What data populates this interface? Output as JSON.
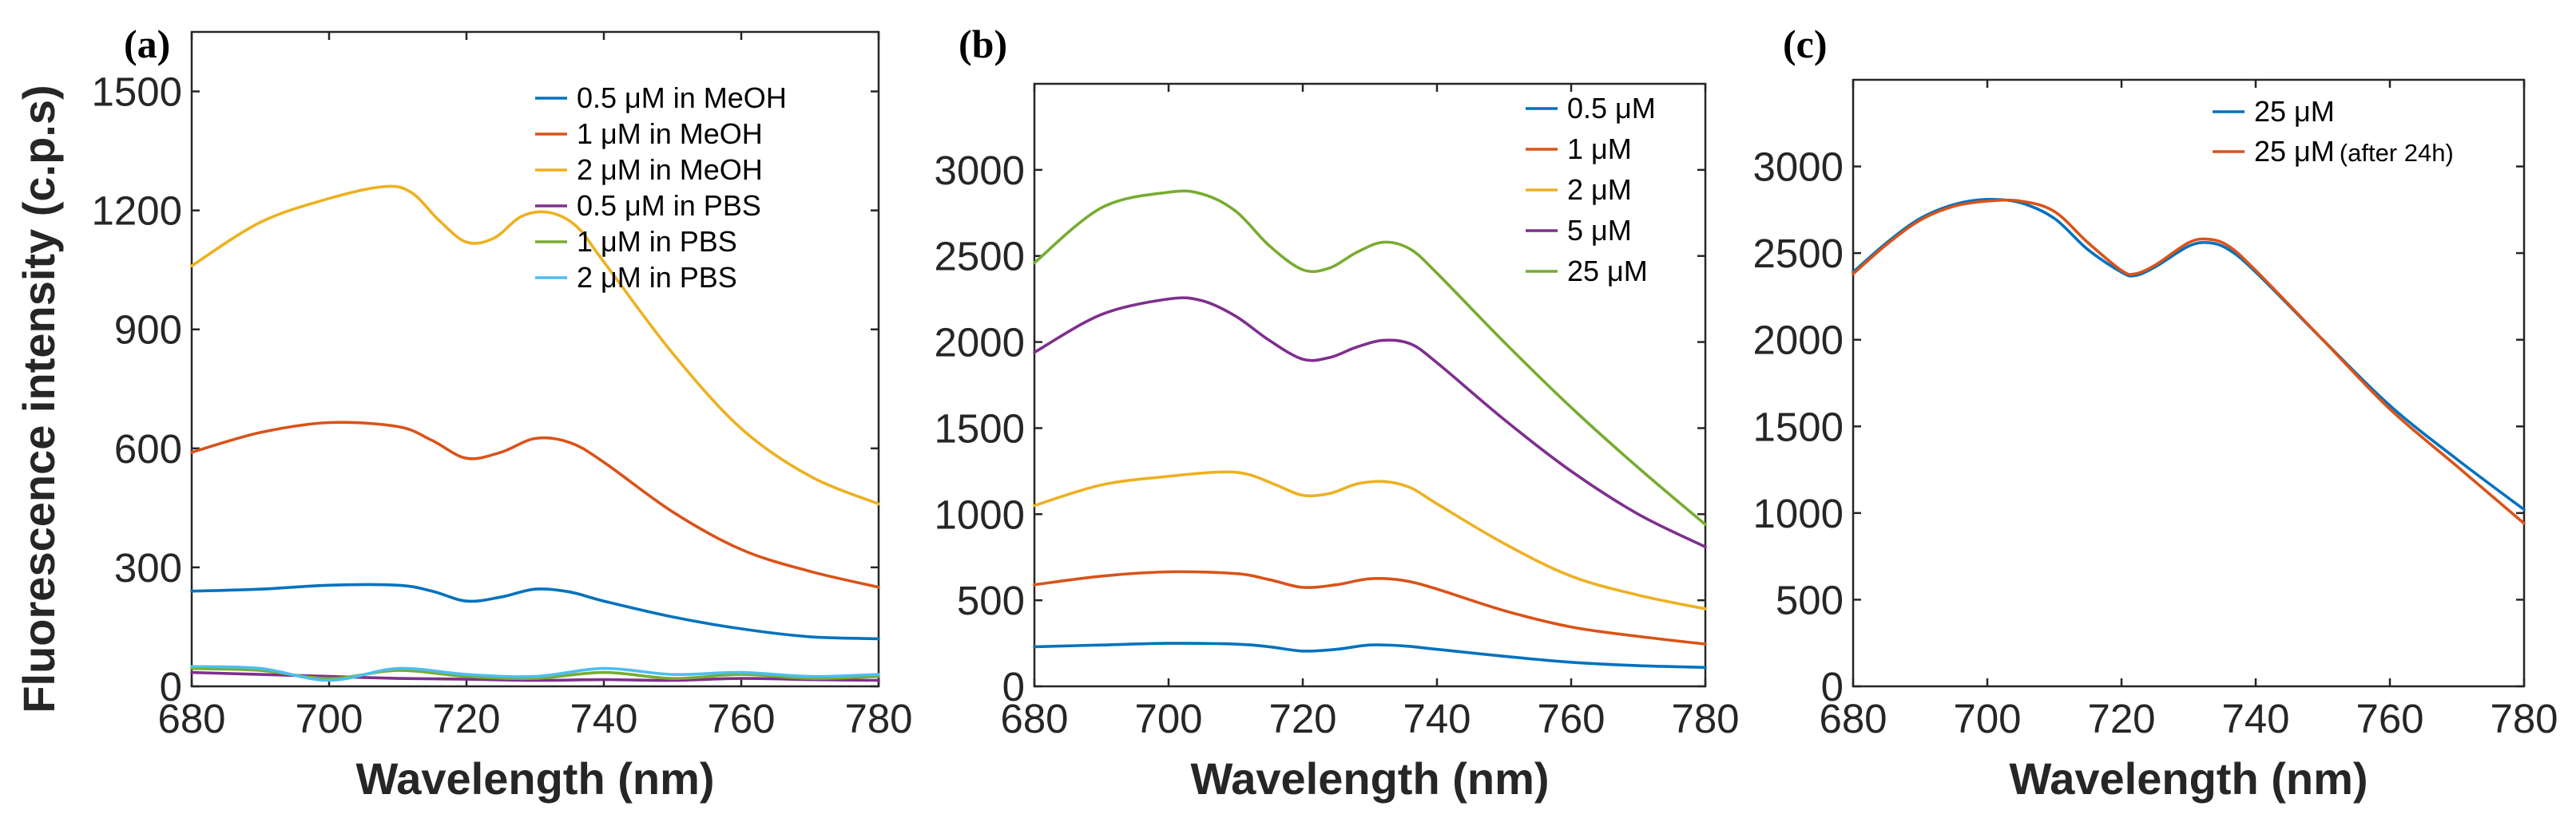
{
  "colors": {
    "blue": "#0072BD",
    "orange": "#D95319",
    "yellow": "#EDB120",
    "purple": "#7E2F8E",
    "green": "#77AC30",
    "cyan": "#4DBEEE"
  },
  "chart_data": [
    {
      "type": "line",
      "panel_label": "(a)",
      "xlabel": "Wavelength (nm)",
      "ylabel": "Fluorescence intensity (c.p.s)",
      "xlim": [
        680,
        780
      ],
      "ylim": [
        0,
        1650
      ],
      "xticks": [
        680,
        700,
        720,
        740,
        760,
        780
      ],
      "yticks": [
        0,
        300,
        600,
        900,
        1200,
        1500
      ],
      "legend_position": "top-right",
      "series": [
        {
          "name": "0.5 μM in MeOH",
          "color": "#0072BD",
          "x": [
            680,
            690,
            700,
            710,
            715,
            720,
            725,
            730,
            735,
            740,
            750,
            760,
            770,
            780
          ],
          "y": [
            240,
            245,
            255,
            255,
            240,
            215,
            225,
            245,
            238,
            215,
            175,
            145,
            125,
            120
          ]
        },
        {
          "name": "1 μM in MeOH",
          "color": "#D95319",
          "x": [
            680,
            690,
            700,
            710,
            715,
            720,
            725,
            730,
            735,
            740,
            750,
            760,
            770,
            780
          ],
          "y": [
            590,
            640,
            665,
            655,
            620,
            575,
            590,
            625,
            615,
            565,
            440,
            345,
            290,
            250
          ]
        },
        {
          "name": "2 μM in MeOH",
          "color": "#EDB120",
          "x": [
            680,
            690,
            700,
            708,
            712,
            716,
            720,
            724,
            728,
            732,
            736,
            740,
            750,
            760,
            770,
            780
          ],
          "y": [
            1060,
            1170,
            1230,
            1260,
            1245,
            1175,
            1120,
            1130,
            1185,
            1195,
            1160,
            1070,
            840,
            650,
            530,
            460
          ]
        },
        {
          "name": "0.5 μM in PBS",
          "color": "#7E2F8E",
          "x": [
            680,
            690,
            700,
            710,
            720,
            730,
            740,
            750,
            760,
            770,
            780
          ],
          "y": [
            35,
            30,
            25,
            20,
            18,
            15,
            17,
            15,
            20,
            17,
            15
          ]
        },
        {
          "name": "1 μM in PBS",
          "color": "#77AC30",
          "x": [
            680,
            690,
            700,
            710,
            720,
            730,
            740,
            750,
            760,
            770,
            780
          ],
          "y": [
            45,
            40,
            20,
            40,
            25,
            20,
            35,
            20,
            30,
            20,
            25
          ]
        },
        {
          "name": "2 μM in PBS",
          "color": "#4DBEEE",
          "x": [
            680,
            690,
            700,
            710,
            720,
            730,
            740,
            750,
            760,
            770,
            780
          ],
          "y": [
            50,
            45,
            15,
            45,
            30,
            25,
            45,
            30,
            35,
            25,
            30
          ]
        }
      ]
    },
    {
      "type": "line",
      "panel_label": "(b)",
      "xlabel": "Wavelength (nm)",
      "ylabel": "",
      "xlim": [
        680,
        780
      ],
      "ylim": [
        0,
        3500
      ],
      "xticks": [
        680,
        700,
        720,
        740,
        760,
        780
      ],
      "yticks": [
        0,
        500,
        1000,
        1500,
        2000,
        2500,
        3000
      ],
      "legend_position": "top-right",
      "series": [
        {
          "name": "0.5 μM",
          "color": "#0072BD",
          "x": [
            680,
            690,
            700,
            710,
            715,
            720,
            725,
            730,
            735,
            740,
            750,
            760,
            770,
            780
          ],
          "y": [
            230,
            240,
            250,
            245,
            230,
            205,
            215,
            240,
            235,
            215,
            175,
            140,
            120,
            110
          ]
        },
        {
          "name": "1 μM",
          "color": "#D95319",
          "x": [
            680,
            690,
            700,
            710,
            715,
            720,
            725,
            730,
            735,
            740,
            750,
            760,
            770,
            780
          ],
          "y": [
            590,
            640,
            665,
            655,
            620,
            575,
            590,
            625,
            615,
            565,
            440,
            345,
            290,
            245
          ]
        },
        {
          "name": "2 μM",
          "color": "#EDB120",
          "x": [
            680,
            690,
            700,
            708,
            712,
            716,
            720,
            724,
            728,
            732,
            736,
            740,
            750,
            760,
            770,
            780
          ],
          "y": [
            1050,
            1170,
            1220,
            1245,
            1230,
            1170,
            1110,
            1120,
            1175,
            1190,
            1155,
            1060,
            830,
            640,
            530,
            450
          ]
        },
        {
          "name": "5 μM",
          "color": "#7E2F8E",
          "x": [
            680,
            690,
            700,
            705,
            710,
            715,
            720,
            724,
            728,
            732,
            736,
            740,
            750,
            760,
            770,
            780
          ],
          "y": [
            1940,
            2160,
            2250,
            2240,
            2150,
            2010,
            1900,
            1910,
            1970,
            2010,
            1990,
            1880,
            1550,
            1250,
            1000,
            810
          ]
        },
        {
          "name": "25 μM",
          "color": "#77AC30",
          "x": [
            680,
            690,
            700,
            705,
            710,
            715,
            720,
            724,
            728,
            732,
            736,
            740,
            750,
            760,
            770,
            780
          ],
          "y": [
            2460,
            2780,
            2870,
            2860,
            2760,
            2560,
            2420,
            2430,
            2520,
            2580,
            2540,
            2400,
            2000,
            1620,
            1270,
            940
          ]
        }
      ]
    },
    {
      "type": "line",
      "panel_label": "(c)",
      "xlabel": "Wavelength (nm)",
      "ylabel": "",
      "xlim": [
        680,
        780
      ],
      "ylim": [
        0,
        3500
      ],
      "xticks": [
        680,
        700,
        720,
        740,
        760,
        780
      ],
      "yticks": [
        0,
        500,
        1000,
        1500,
        2000,
        2500,
        3000
      ],
      "legend_position": "top-right",
      "series": [
        {
          "name": "25 μM",
          "name_suffix": "",
          "color": "#0072BD",
          "x": [
            680,
            685,
            690,
            695,
            700,
            705,
            710,
            715,
            720,
            722,
            725,
            730,
            733,
            736,
            740,
            750,
            760,
            770,
            780
          ],
          "y": [
            2390,
            2560,
            2700,
            2780,
            2810,
            2790,
            2700,
            2520,
            2390,
            2370,
            2420,
            2540,
            2560,
            2520,
            2390,
            2000,
            1620,
            1310,
            1020
          ]
        },
        {
          "name": "25 μM",
          "name_suffix": "(after 24h)",
          "color": "#D95319",
          "x": [
            680,
            685,
            690,
            695,
            700,
            705,
            710,
            715,
            720,
            722,
            725,
            730,
            733,
            736,
            740,
            750,
            760,
            770,
            780
          ],
          "y": [
            2380,
            2550,
            2690,
            2770,
            2800,
            2800,
            2740,
            2560,
            2400,
            2380,
            2430,
            2560,
            2580,
            2540,
            2400,
            2000,
            1600,
            1270,
            940
          ]
        }
      ]
    }
  ]
}
